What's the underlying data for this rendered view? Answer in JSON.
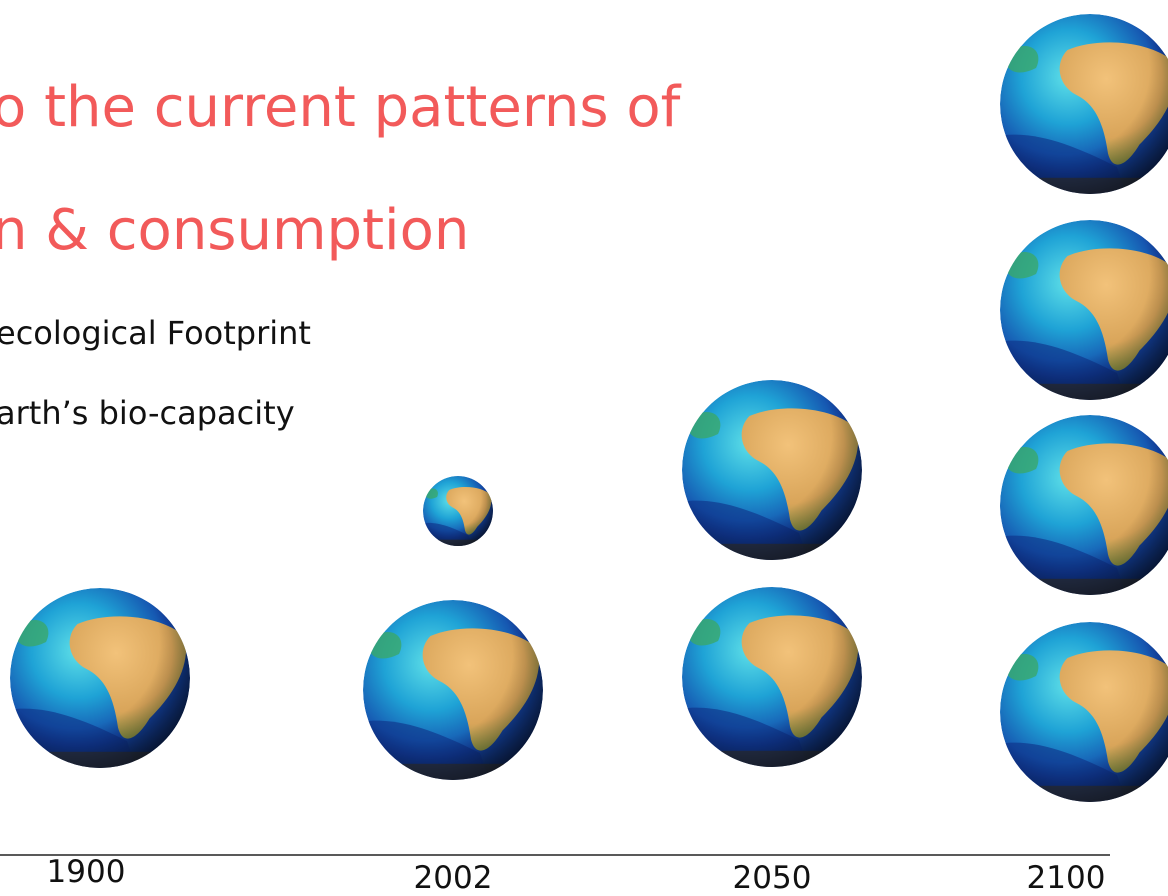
{
  "title": {
    "lines": [
      "o the current patterns of",
      "n & consumption"
    ]
  },
  "bullets": [
    "ecological Footprint",
    "arth’s bio-capacity"
  ],
  "timeline": {
    "labels": [
      "1900",
      "2002",
      "2050",
      "2100"
    ]
  }
}
